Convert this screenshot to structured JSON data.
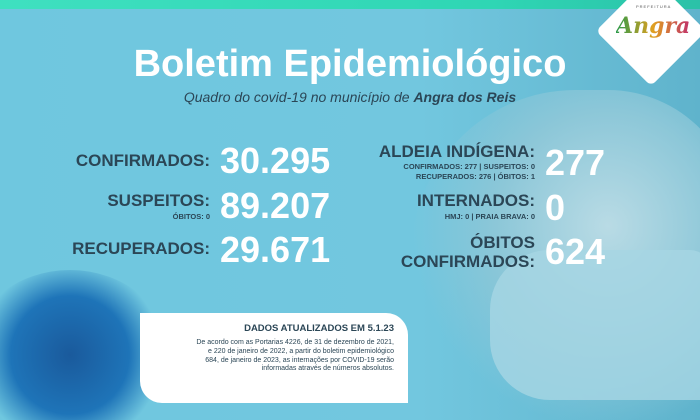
{
  "header": {
    "title": "Boletim Epidemiológico",
    "subtitle_prefix": "Quadro do covid-19 no município de ",
    "subtitle_place": "Angra dos Reis"
  },
  "logo": {
    "small": "PREFEITURA",
    "name": "Angra"
  },
  "stats": {
    "confirmados": {
      "label": "CONFIRMADOS:",
      "value": "30.295"
    },
    "suspeitos": {
      "label": "SUSPEITOS:",
      "sub": "ÓBITOS: 0",
      "value": "89.207"
    },
    "recuperados": {
      "label": "RECUPERADOS:",
      "value": "29.671"
    },
    "aldeia": {
      "label": "ALDEIA INDÍGENA:",
      "sub1": "CONFIRMADOS: 277 | SUSPEITOS: 0",
      "sub2": "RECUPERADOS: 276 | ÓBITOS: 1",
      "value": "277"
    },
    "internados": {
      "label": "INTERNADOS:",
      "sub": "HMJ: 0 | PRAIA BRAVA: 0",
      "value": "0"
    },
    "obitos": {
      "label1": "ÓBITOS",
      "label2": "CONFIRMADOS:",
      "value": "624"
    }
  },
  "note": {
    "heading": "DADOS ATUALIZADOS EM 5.1.23",
    "body": "De acordo com as Portarias 4226, de 31 de dezembro de 2021, e 220 de janeiro de 2022, a partir do boletim epidemiológico 684, de janeiro de 2023, as internações por COVID-19 serão informadas através de números absolutos."
  },
  "colors": {
    "background": "#6fc6de",
    "text_dark": "#2b4656",
    "topbar": "#2fd6b4"
  }
}
